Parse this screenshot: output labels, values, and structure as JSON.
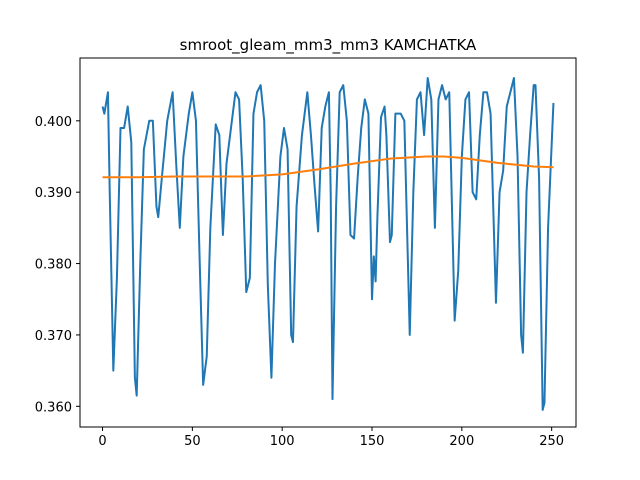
{
  "chart_data": {
    "type": "line",
    "title": "smroot_gleam_mm3_mm3 KAMCHATKA",
    "xlim": [
      -12.55,
      263.55
    ],
    "xticks": [
      0,
      50,
      100,
      150,
      200,
      250
    ],
    "ylim": [
      0.3571,
      0.4088
    ],
    "yticks": [
      {
        "value": 0.36,
        "label": "0.360"
      },
      {
        "value": 0.37,
        "label": "0.370"
      },
      {
        "value": 0.38,
        "label": "0.380"
      },
      {
        "value": 0.39,
        "label": "0.390"
      },
      {
        "value": 0.4,
        "label": "0.400"
      }
    ],
    "series": [
      {
        "color": "#1f77b4",
        "x": [
          0,
          1,
          3,
          4,
          6,
          8,
          10,
          12,
          14,
          16,
          18,
          19,
          21,
          23,
          26,
          28,
          30,
          31,
          33,
          36,
          39,
          41,
          43,
          45,
          48,
          50,
          52,
          54,
          56,
          58,
          60,
          63,
          65,
          67,
          69,
          72,
          74,
          76,
          78,
          80,
          82,
          84,
          86,
          88,
          90,
          92,
          94,
          96,
          99,
          101,
          103,
          105,
          106,
          108,
          111,
          113,
          114,
          116,
          118,
          120,
          122,
          124,
          126,
          127,
          128,
          130,
          132,
          134,
          136,
          138,
          140,
          142,
          144,
          146,
          148,
          150,
          151,
          152,
          153,
          155,
          157,
          158,
          160,
          161,
          163,
          166,
          168,
          171,
          173,
          175,
          177,
          179,
          181,
          183,
          185,
          187,
          189,
          191,
          193,
          196,
          198,
          200,
          202,
          204,
          206,
          208,
          210,
          212,
          214,
          216,
          219,
          221,
          223,
          225,
          228,
          229,
          231,
          233,
          234,
          236,
          238,
          240,
          241,
          243,
          245,
          246,
          248,
          251
        ],
        "values": [
          0.402,
          0.401,
          0.404,
          0.39,
          0.365,
          0.378,
          0.399,
          0.399,
          0.402,
          0.397,
          0.364,
          0.3615,
          0.38,
          0.396,
          0.4,
          0.4,
          0.388,
          0.3865,
          0.392,
          0.4,
          0.404,
          0.394,
          0.385,
          0.395,
          0.401,
          0.404,
          0.4,
          0.381,
          0.363,
          0.367,
          0.385,
          0.3995,
          0.398,
          0.384,
          0.394,
          0.4,
          0.404,
          0.403,
          0.392,
          0.376,
          0.378,
          0.401,
          0.404,
          0.405,
          0.4,
          0.377,
          0.364,
          0.38,
          0.395,
          0.399,
          0.396,
          0.37,
          0.369,
          0.388,
          0.398,
          0.402,
          0.404,
          0.398,
          0.391,
          0.3845,
          0.399,
          0.402,
          0.404,
          0.39,
          0.361,
          0.388,
          0.404,
          0.405,
          0.4,
          0.384,
          0.3835,
          0.392,
          0.399,
          0.403,
          0.401,
          0.375,
          0.381,
          0.3775,
          0.3865,
          0.4005,
          0.402,
          0.398,
          0.383,
          0.384,
          0.401,
          0.401,
          0.4,
          0.37,
          0.39,
          0.403,
          0.404,
          0.398,
          0.406,
          0.403,
          0.385,
          0.403,
          0.405,
          0.403,
          0.404,
          0.372,
          0.379,
          0.395,
          0.403,
          0.404,
          0.39,
          0.389,
          0.398,
          0.404,
          0.404,
          0.401,
          0.3745,
          0.39,
          0.393,
          0.402,
          0.405,
          0.406,
          0.395,
          0.37,
          0.3675,
          0.39,
          0.398,
          0.405,
          0.405,
          0.392,
          0.3595,
          0.3605,
          0.385,
          0.4025
        ]
      },
      {
        "color": "#ff7f0e",
        "x": [
          0,
          20,
          40,
          60,
          80,
          100,
          120,
          140,
          160,
          180,
          190,
          200,
          220,
          240,
          251
        ],
        "values": [
          0.3921,
          0.3921,
          0.3922,
          0.3922,
          0.3922,
          0.3925,
          0.3932,
          0.394,
          0.3947,
          0.395,
          0.395,
          0.3948,
          0.3941,
          0.3936,
          0.3935
        ]
      }
    ]
  }
}
